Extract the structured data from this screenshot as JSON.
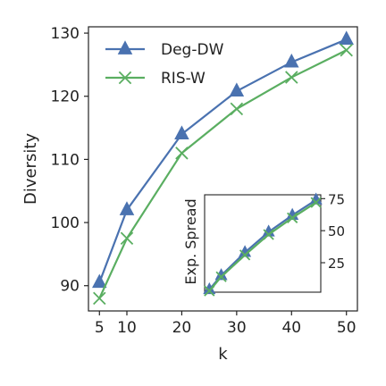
{
  "chart_data": [
    {
      "type": "line",
      "xlabel": "k",
      "ylabel": "Diversity",
      "x": [
        5,
        10,
        20,
        30,
        40,
        50
      ],
      "x_ticks": [
        "5",
        "10",
        "20",
        "30",
        "40",
        "50"
      ],
      "y_ticks": [
        "90",
        "100",
        "110",
        "120",
        "130"
      ],
      "xlim": [
        3,
        52
      ],
      "ylim": [
        86,
        131
      ],
      "grid": false,
      "legend_position": "top-left",
      "series": [
        {
          "name": "Deg-DW",
          "marker": "triangle",
          "color": "#4a72b0",
          "values": [
            90.5,
            102.0,
            114.0,
            120.8,
            125.4,
            129.0
          ]
        },
        {
          "name": "RIS-W",
          "marker": "x",
          "color": "#5aae61",
          "values": [
            88.0,
            97.5,
            111.0,
            118.0,
            123.0,
            127.3
          ]
        }
      ]
    },
    {
      "type": "line",
      "inset": true,
      "xlabel": "",
      "ylabel": "Exp. Spread",
      "x": [
        5,
        10,
        20,
        30,
        40,
        50
      ],
      "y_ticks": [
        "25",
        "50",
        "75"
      ],
      "xlim": [
        3,
        52
      ],
      "ylim": [
        2,
        78
      ],
      "y_axis_side": "right",
      "x_tick_labels_shown": false,
      "series": [
        {
          "name": "Deg-DW",
          "marker": "triangle",
          "color": "#4a72b0",
          "values": [
            4,
            15,
            33,
            49,
            62,
            74
          ]
        },
        {
          "name": "RIS-W",
          "marker": "x",
          "color": "#5aae61",
          "values": [
            3,
            14,
            31,
            47,
            60,
            72
          ]
        }
      ]
    }
  ]
}
